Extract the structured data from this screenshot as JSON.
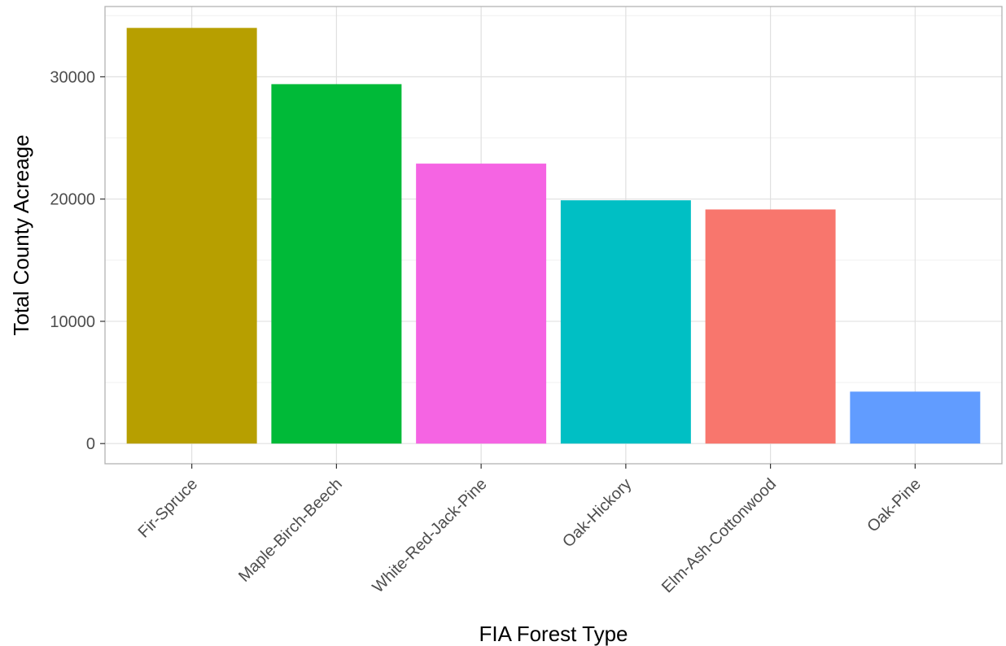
{
  "chart_data": {
    "type": "bar",
    "title": "",
    "xlabel": "FIA Forest Type",
    "ylabel": "Total County Acreage",
    "categories": [
      "Fir-Spruce",
      "Maple-Birch-Beech",
      "White-Red-Jack-Pine",
      "Oak-Hickory",
      "Elm-Ash-Cottonwood",
      "Oak-Pine"
    ],
    "values": [
      34000,
      29400,
      22900,
      19900,
      19150,
      4250
    ],
    "colors": [
      "#B79F00",
      "#00BA38",
      "#F564E3",
      "#00BFC4",
      "#F8766D",
      "#619CFF"
    ],
    "ylim": [
      -1650,
      35750
    ],
    "yticks": [
      0,
      10000,
      20000,
      30000
    ],
    "ytick_labels": [
      "0",
      "10000",
      "20000",
      "30000"
    ],
    "grid": true,
    "legend": "none",
    "theme": "light"
  }
}
